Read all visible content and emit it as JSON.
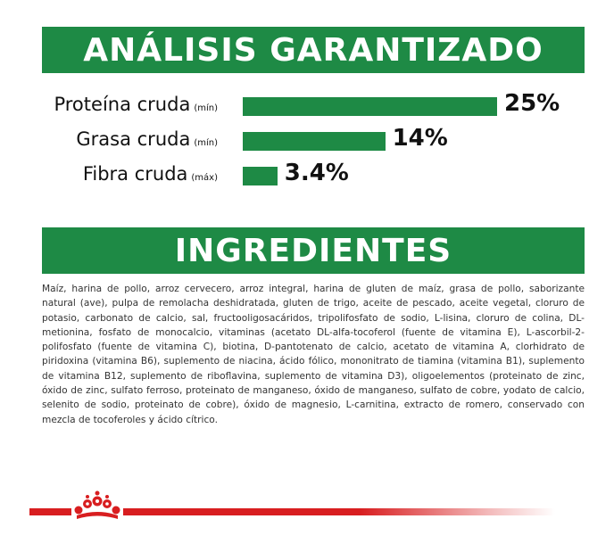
{
  "analysis": {
    "title": "ANÁLISIS GARANTIZADO",
    "accent_color": "#1e8a45",
    "rows": [
      {
        "label": "Proteína cruda",
        "qualifier": "(mín)",
        "value": "25%",
        "percent": 25
      },
      {
        "label": "Grasa cruda",
        "qualifier": "(mín)",
        "value": "14%",
        "percent": 14
      },
      {
        "label": "Fibra cruda",
        "qualifier": "(máx)",
        "value": "3.4%",
        "percent": 3.4
      }
    ]
  },
  "ingredients": {
    "title": "INGREDIENTES",
    "text": "Maíz, harina de pollo, arroz cervecero, arroz integral, harina de gluten de maíz, grasa de pollo, saborizante natural (ave), pulpa de remolacha deshidratada, gluten de trigo, aceite de pescado, aceite vegetal, cloruro de potasio, carbonato de calcio, sal, fructooligosacáridos, tripolifosfato de sodio, L-lisina, cloruro de colina, DL-metionina, fosfato de monocalcio, vitaminas (acetato DL-alfa-tocoferol (fuente de vitamina E), L-ascorbil-2-polifosfato (fuente de vitamina C), biotina, D-pantotenato de calcio, acetato de vitamina A, clorhidrato de piridoxina (vitamina B6), suplemento de niacina, ácido fólico, mononitrato de tiamina (vitamina B1), suplemento de vitamina B12, suplemento de riboflavina, suplemento de vitamina D3), oligoelementos (proteinato de zinc, óxido de zinc, sulfato ferroso, proteinato de manganeso, óxido de manganeso, sulfato de cobre, yodato de calcio, selenito de sodio, proteinato de cobre), óxido de magnesio, L-carnitina, extracto de romero, conservado con mezcla de tocoferoles y ácido cítrico."
  },
  "footer": {
    "logo_icon": "royal-canin-crown-icon",
    "line_color": "#d81e20"
  }
}
